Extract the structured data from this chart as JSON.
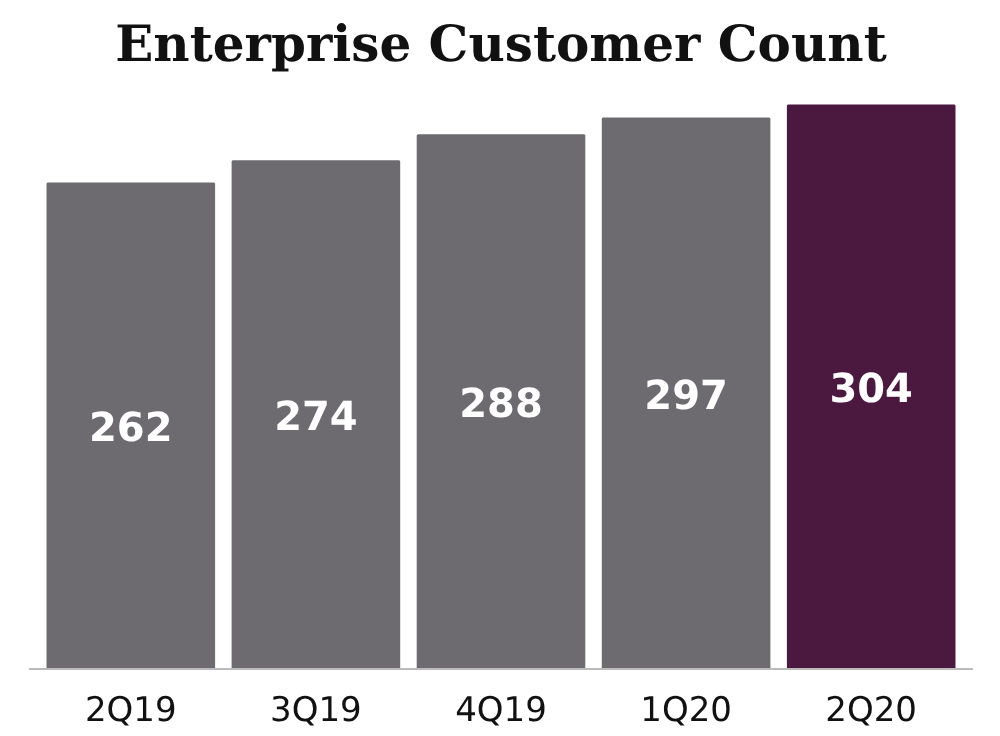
{
  "chart_data": {
    "type": "bar",
    "title": "Enterprise Customer Count",
    "categories": [
      "2Q19",
      "3Q19",
      "4Q19",
      "1Q20",
      "2Q20"
    ],
    "values": [
      262,
      274,
      288,
      297,
      304
    ],
    "colors": [
      "#6d6b6f",
      "#6d6b6f",
      "#6d6b6f",
      "#6d6b6f",
      "#4b1840"
    ],
    "data_labels": true
  }
}
